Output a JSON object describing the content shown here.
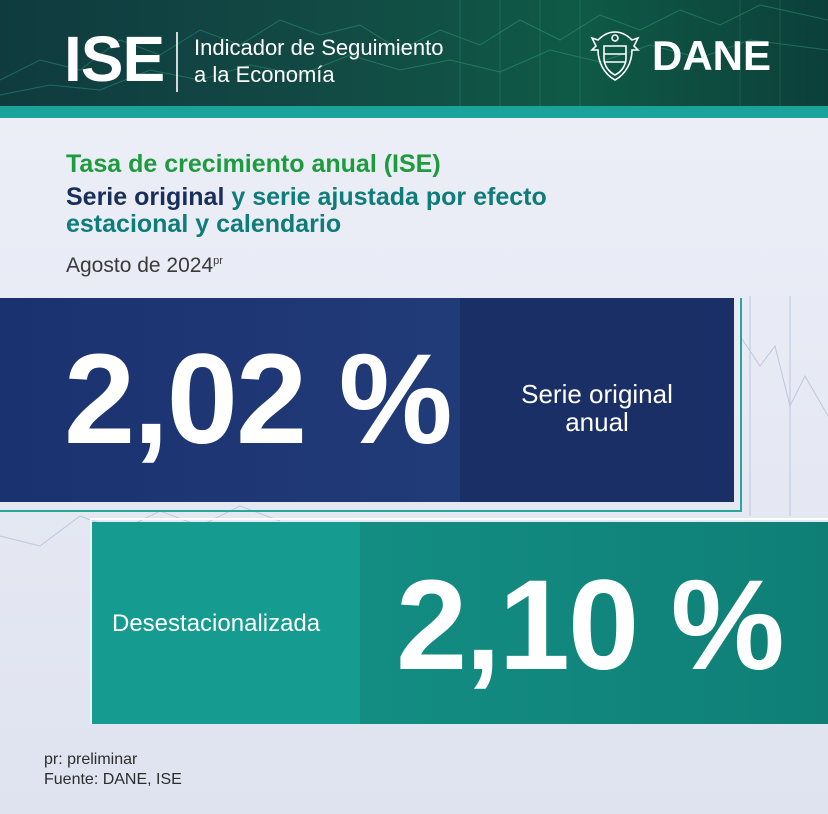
{
  "header": {
    "short": "ISE",
    "description_line1": "Indicador de Seguimiento",
    "description_line2": "a la Economía",
    "brand": "DANE",
    "seal_icon": "colombia-coat-of-arms-icon"
  },
  "titles": {
    "line1": "Tasa de crecimiento anual (ISE)",
    "line2_a": "Serie original",
    "line2_b": " y ",
    "line2_c": "serie ajustada por efecto",
    "line3": "estacional y calendario",
    "period": "Agosto de 2024",
    "period_sup": "pr"
  },
  "original": {
    "value": "2,02 %",
    "label_line1": "Serie original",
    "label_line2": "anual"
  },
  "adjusted": {
    "label": "Desestacionalizada",
    "value": "2,10 %"
  },
  "footer": {
    "note": "pr: preliminar",
    "source": "Fuente: DANE, ISE"
  },
  "colors": {
    "header_bg": "#124a44",
    "accent_teal": "#1aa39a",
    "title_green": "#1d9b3e",
    "title_navy": "#1a2e5a",
    "original_box": "#1b3270",
    "adjusted_box": "#128a80"
  }
}
